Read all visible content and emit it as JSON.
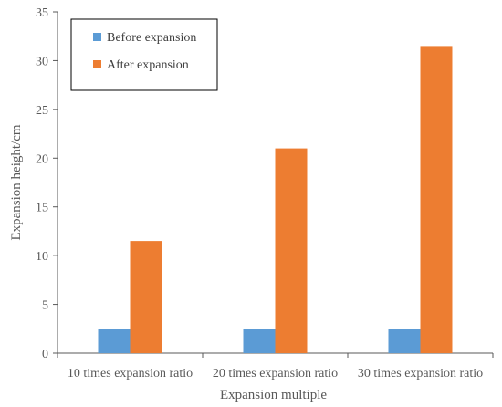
{
  "chart_data": {
    "type": "bar",
    "categories": [
      "10 times expansion ratio",
      "20 times expansion ratio",
      "30 times expansion ratio"
    ],
    "series": [
      {
        "name": "Before expansion",
        "values": [
          2.5,
          2.5,
          2.5
        ],
        "color": "#5B9BD5"
      },
      {
        "name": "After expansion",
        "values": [
          11.5,
          21.0,
          31.5
        ],
        "color": "#ED7D31"
      }
    ],
    "xlabel": "Expansion multiple",
    "ylabel": "Expansion height/cm",
    "ylim": [
      0,
      35
    ],
    "yticks": [
      0,
      5,
      10,
      15,
      20,
      25,
      30,
      35
    ],
    "grid": false,
    "legend_position": "top-left"
  }
}
